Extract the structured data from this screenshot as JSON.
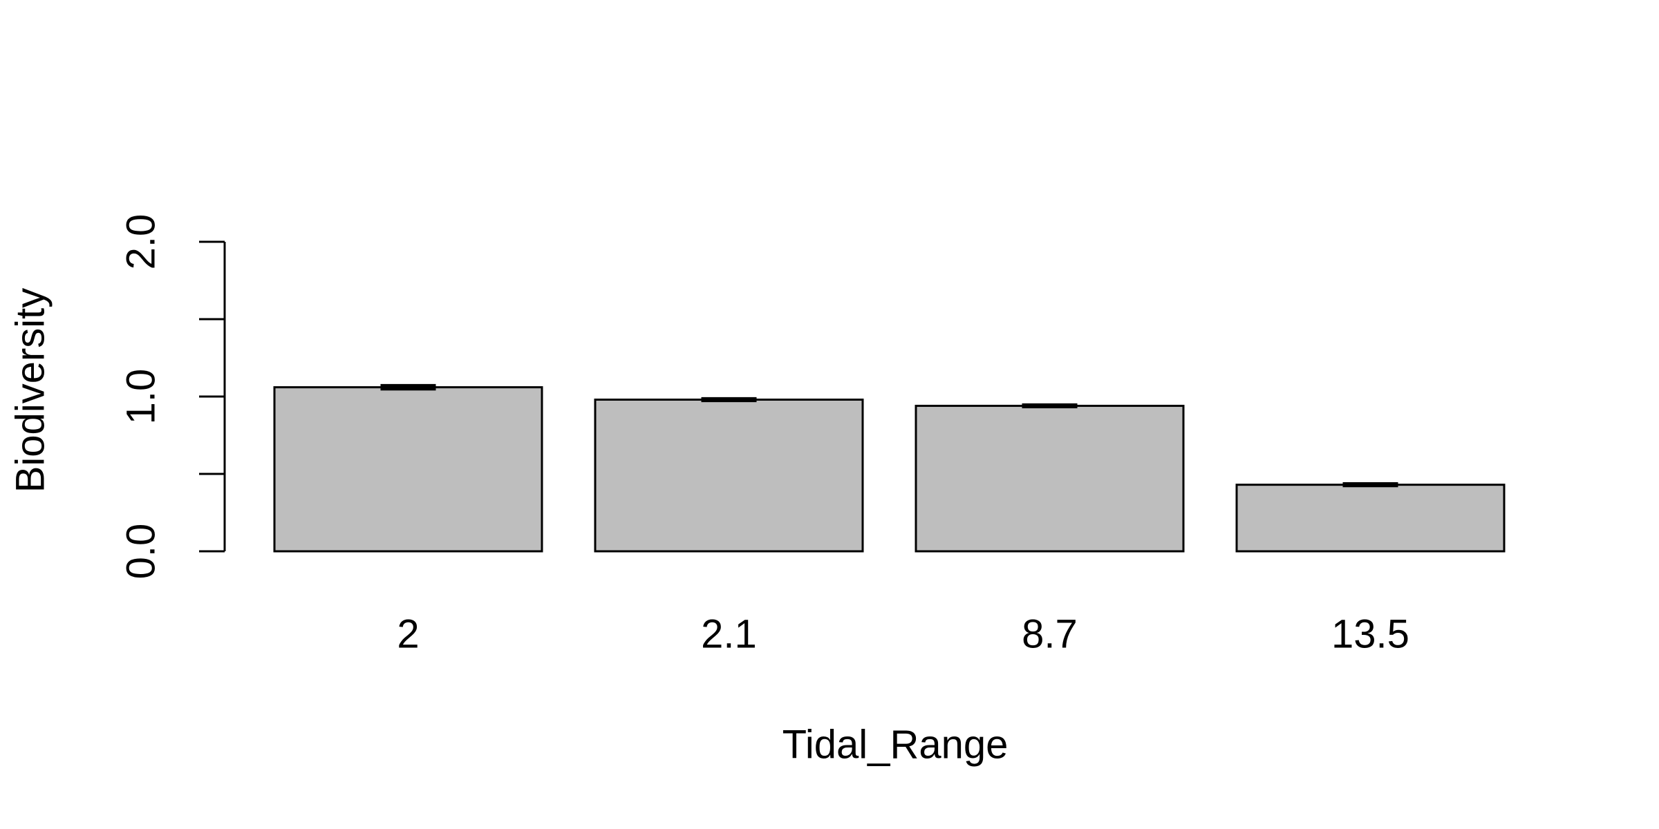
{
  "chart_data": {
    "type": "bar",
    "categories": [
      "2",
      "2.1",
      "8.7",
      "13.5"
    ],
    "values": [
      1.06,
      0.98,
      0.94,
      0.43
    ],
    "errors": [
      0.01,
      0.005,
      0.005,
      0.005
    ],
    "xlabel": "Tidal_Range",
    "ylabel": "Biodiversity",
    "ylim": [
      0,
      2
    ],
    "yticks": [
      0,
      0.5,
      1,
      1.5,
      2
    ],
    "ytick_labels": [
      "0.0",
      "",
      "1.0",
      "",
      "2.0"
    ],
    "grid": false,
    "bar_color": "#bebebe",
    "edge_color": "#000000"
  }
}
